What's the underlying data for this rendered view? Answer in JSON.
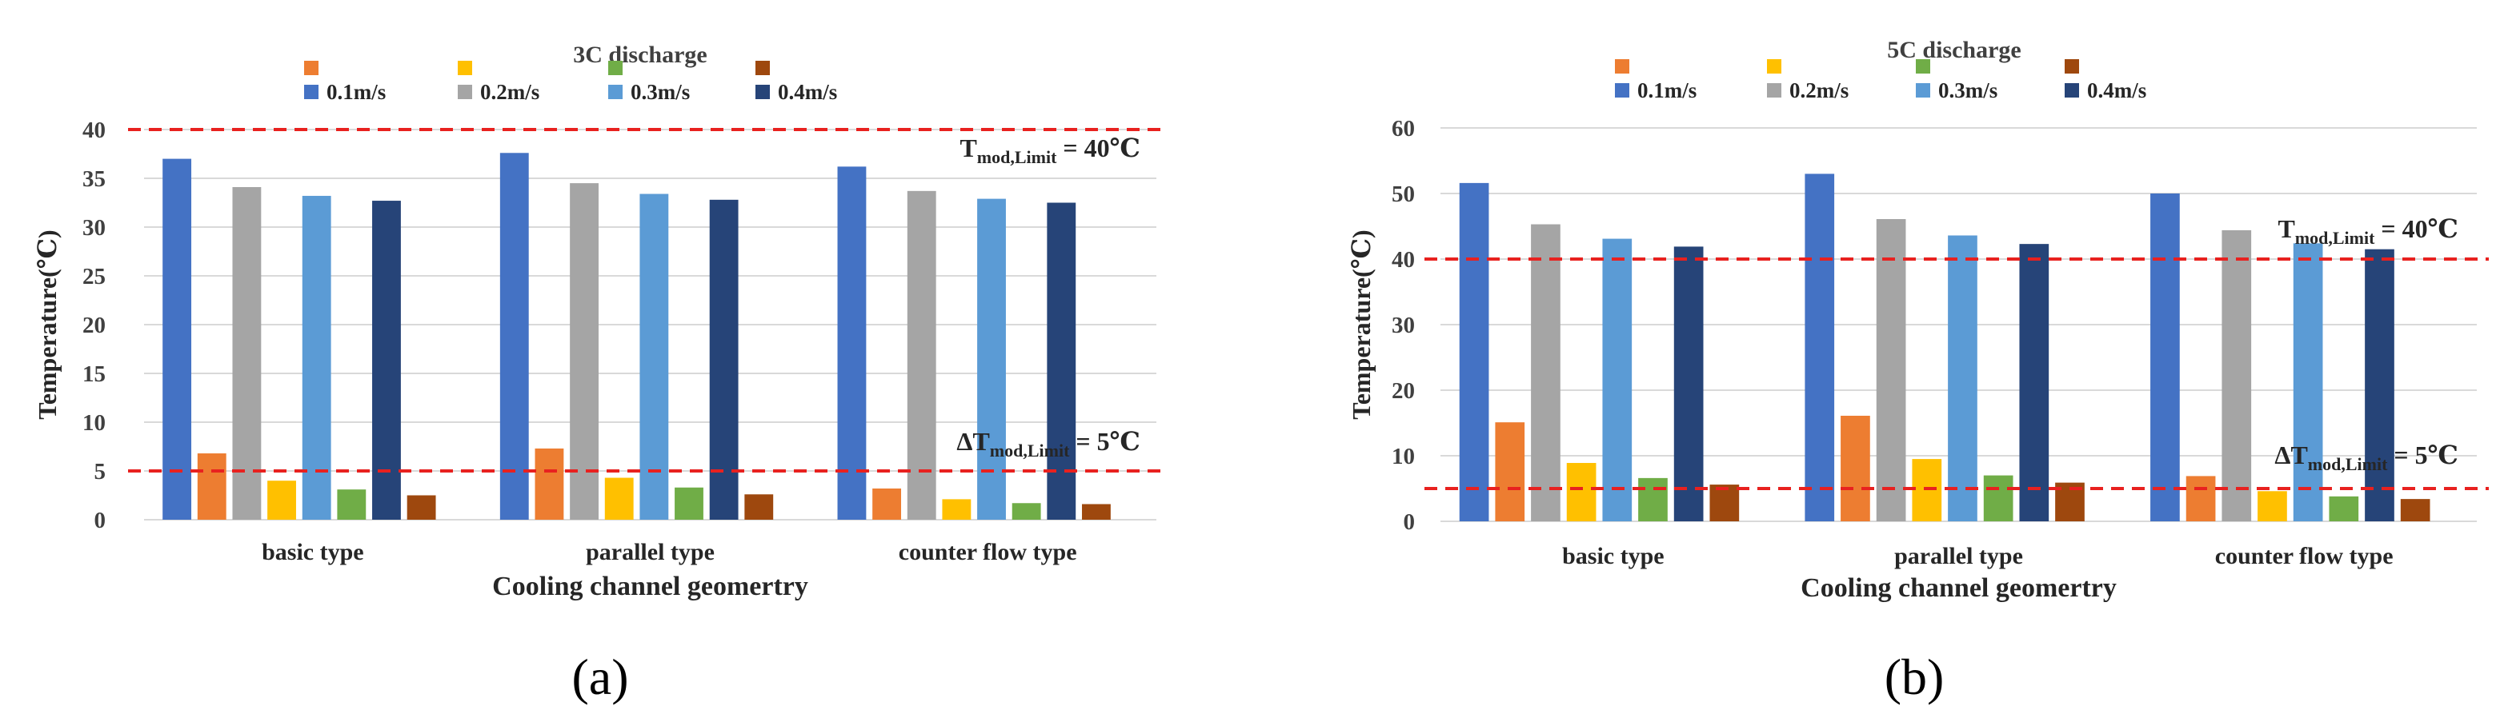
{
  "colors": {
    "0.1m/s_lo": "#ED7D31",
    "0.2m/s_lo": "#FFC000",
    "0.3m/s_lo": "#70AD47",
    "0.4m/s_lo": "#9E480E",
    "0.1m/s_hi": "#4472C4",
    "0.2m/s_hi": "#A5A5A5",
    "0.3m/s_hi": "#5B9BD5",
    "0.4m/s_hi": "#264478",
    "limit_line": "#E8211F",
    "grid": "#D9D9D9"
  },
  "chart_data": [
    {
      "type": "bar",
      "panel_label": "(a)",
      "title": "3C discharge",
      "xlabel": "Cooling channel geomertry",
      "ylabel": "Temperature(℃)",
      "ylim": [
        0,
        40
      ],
      "yticks": [
        0,
        5,
        10,
        15,
        20,
        25,
        30,
        35,
        40
      ],
      "categories": [
        "basic type",
        "parallel type",
        "counter flow type"
      ],
      "legend_position": "top",
      "legend_color_keys": [
        "0.1m/s_lo",
        "0.2m/s_lo",
        "0.3m/s_lo",
        "0.4m/s_lo",
        "0.1m/s_hi",
        "0.2m/s_hi",
        "0.3m/s_hi",
        "0.4m/s_hi"
      ],
      "legend_labels": [
        "",
        "",
        "",
        "",
        "0.1m/s",
        "0.2m/s",
        "0.3m/s",
        "0.4m/s"
      ],
      "series": [
        {
          "name": "0.1m/s",
          "kind": "Tmax",
          "color_key": "0.1m/s_hi",
          "values": [
            37.0,
            37.6,
            36.2
          ]
        },
        {
          "name": "0.1m/s",
          "kind": "dT",
          "color_key": "0.1m/s_lo",
          "values": [
            6.8,
            7.3,
            3.2
          ]
        },
        {
          "name": "0.2m/s",
          "kind": "Tmax",
          "color_key": "0.2m/s_hi",
          "values": [
            34.1,
            34.5,
            33.7
          ]
        },
        {
          "name": "0.2m/s",
          "kind": "dT",
          "color_key": "0.2m/s_lo",
          "values": [
            4.0,
            4.3,
            2.1
          ]
        },
        {
          "name": "0.3m/s",
          "kind": "Tmax",
          "color_key": "0.3m/s_hi",
          "values": [
            33.2,
            33.4,
            32.9
          ]
        },
        {
          "name": "0.3m/s",
          "kind": "dT",
          "color_key": "0.3m/s_lo",
          "values": [
            3.1,
            3.3,
            1.7
          ]
        },
        {
          "name": "0.4m/s",
          "kind": "Tmax",
          "color_key": "0.4m/s_hi",
          "values": [
            32.7,
            32.8,
            32.5
          ]
        },
        {
          "name": "0.4m/s",
          "kind": "dT",
          "color_key": "0.4m/s_lo",
          "values": [
            2.5,
            2.6,
            1.6
          ]
        }
      ],
      "reference_lines": [
        {
          "value": 40,
          "label_main": "T",
          "label_sub": "mod,Limit",
          "label_rest": " = 40℃"
        },
        {
          "value": 5,
          "label_main": "ΔT",
          "label_sub": "mod,Limit",
          "label_rest": " = 5℃"
        }
      ]
    },
    {
      "type": "bar",
      "panel_label": "(b)",
      "title": "5C discharge",
      "xlabel": "Cooling channel geomertry",
      "ylabel": "Temperature(℃)",
      "ylim": [
        0,
        60
      ],
      "yticks": [
        0,
        10,
        20,
        30,
        40,
        50,
        60
      ],
      "categories": [
        "basic type",
        "parallel type",
        "counter flow type"
      ],
      "legend_position": "top",
      "legend_color_keys": [
        "0.1m/s_lo",
        "0.2m/s_lo",
        "0.3m/s_lo",
        "0.4m/s_lo",
        "0.1m/s_hi",
        "0.2m/s_hi",
        "0.3m/s_hi",
        "0.4m/s_hi"
      ],
      "legend_labels": [
        "",
        "",
        "",
        "",
        "0.1m/s",
        "0.2m/s",
        "0.3m/s",
        "0.4m/s"
      ],
      "series": [
        {
          "name": "0.1m/s",
          "kind": "Tmax",
          "color_key": "0.1m/s_hi",
          "values": [
            51.6,
            53.0,
            50.0
          ]
        },
        {
          "name": "0.1m/s",
          "kind": "dT",
          "color_key": "0.1m/s_lo",
          "values": [
            15.1,
            16.1,
            6.9
          ]
        },
        {
          "name": "0.2m/s",
          "kind": "Tmax",
          "color_key": "0.2m/s_hi",
          "values": [
            45.3,
            46.1,
            44.4
          ]
        },
        {
          "name": "0.2m/s",
          "kind": "dT",
          "color_key": "0.2m/s_lo",
          "values": [
            8.9,
            9.5,
            4.6
          ]
        },
        {
          "name": "0.3m/s",
          "kind": "Tmax",
          "color_key": "0.3m/s_hi",
          "values": [
            43.1,
            43.6,
            42.4
          ]
        },
        {
          "name": "0.3m/s",
          "kind": "dT",
          "color_key": "0.3m/s_lo",
          "values": [
            6.6,
            7.0,
            3.8
          ]
        },
        {
          "name": "0.4m/s",
          "kind": "Tmax",
          "color_key": "0.4m/s_hi",
          "values": [
            41.9,
            42.3,
            41.5
          ]
        },
        {
          "name": "0.4m/s",
          "kind": "dT",
          "color_key": "0.4m/s_lo",
          "values": [
            5.6,
            5.9,
            3.4
          ]
        }
      ],
      "reference_lines": [
        {
          "value": 40,
          "label_main": "T",
          "label_sub": "mod,Limit",
          "label_rest": " = 40℃"
        },
        {
          "value": 5,
          "label_main": "ΔT",
          "label_sub": "mod,Limit",
          "label_rest": " = 5℃"
        }
      ]
    }
  ]
}
